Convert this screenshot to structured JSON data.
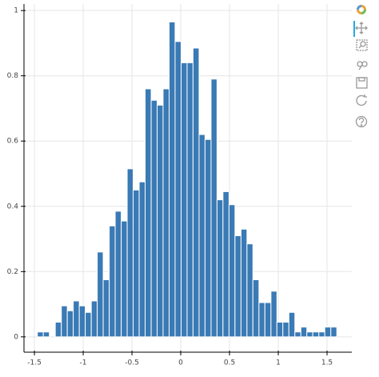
{
  "chart_data": {
    "type": "histogram",
    "bins": [
      -1.47,
      -1.409,
      -1.347,
      -1.286,
      -1.224,
      -1.163,
      -1.102,
      -1.04,
      -0.979,
      -0.917,
      -0.856,
      -0.795,
      -0.733,
      -0.672,
      -0.61,
      -0.549,
      -0.488,
      -0.426,
      -0.365,
      -0.303,
      -0.242,
      -0.181,
      -0.119,
      -0.058,
      0.004,
      0.065,
      0.126,
      0.188,
      0.249,
      0.311,
      0.372,
      0.433,
      0.495,
      0.556,
      0.618,
      0.679,
      0.74,
      0.802,
      0.863,
      0.925,
      0.986,
      1.047,
      1.109,
      1.17,
      1.232,
      1.293,
      1.354,
      1.416,
      1.477,
      1.539,
      1.6
    ],
    "values": [
      0.015,
      0.015,
      0,
      0.045,
      0.095,
      0.08,
      0.11,
      0.095,
      0.075,
      0.11,
      0.26,
      0.175,
      0.34,
      0.385,
      0.355,
      0.515,
      0.45,
      0.475,
      0.76,
      0.725,
      0.71,
      0.76,
      0.965,
      0.905,
      0.84,
      0.84,
      0.885,
      0.62,
      0.605,
      0.79,
      0.42,
      0.445,
      0.405,
      0.31,
      0.33,
      0.285,
      0.175,
      0.105,
      0.105,
      0.14,
      0.045,
      0.045,
      0.075,
      0.015,
      0.03,
      0.015,
      0.015,
      0.015,
      0.03,
      0.03
    ],
    "color": "#3a7ab5",
    "xlim": [
      -1.607,
      1.754
    ],
    "ylim": [
      -0.047,
      1.02
    ],
    "xticks": [
      -1.5,
      -1,
      -0.5,
      0,
      0.5,
      1,
      1.5
    ],
    "yticks": [
      0,
      0.2,
      0.4,
      0.6,
      0.8,
      1
    ],
    "grid": true
  }
}
